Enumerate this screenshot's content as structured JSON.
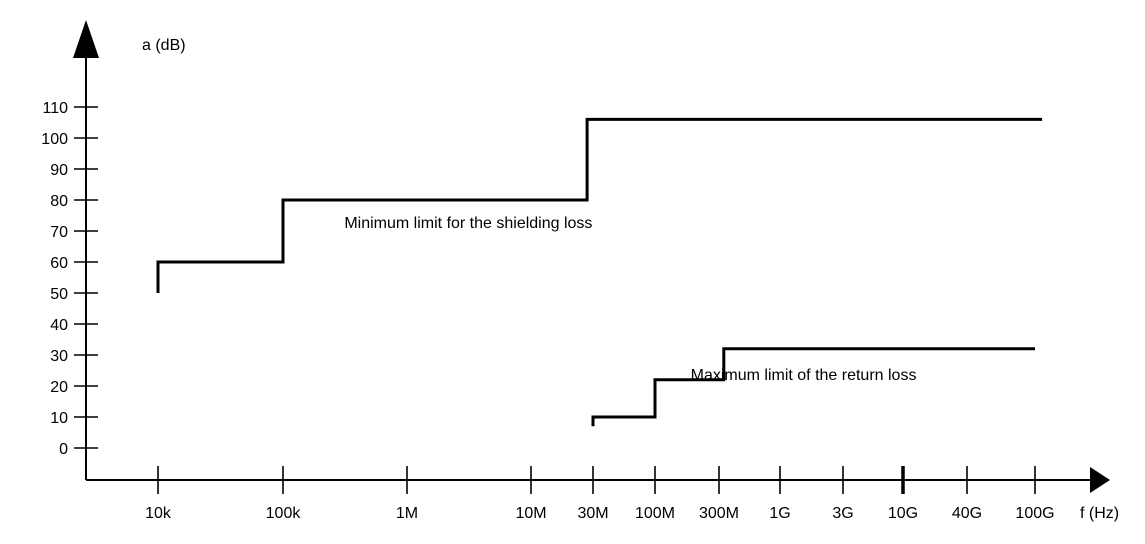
{
  "chart_data": {
    "type": "line",
    "x_scale": "log",
    "xlabel": "f (Hz)",
    "ylabel": "a (dB)",
    "ylim": [
      0,
      110
    ],
    "xlim": [
      10000,
      100000000000
    ],
    "grid": false,
    "legend": "none",
    "yticks": [
      {
        "value": 110,
        "label": "110"
      },
      {
        "value": 100,
        "label": "100"
      },
      {
        "value": 90,
        "label": "90"
      },
      {
        "value": 80,
        "label": "80"
      },
      {
        "value": 70,
        "label": "70"
      },
      {
        "value": 60,
        "label": "60"
      },
      {
        "value": 50,
        "label": "50"
      },
      {
        "value": 40,
        "label": "40"
      },
      {
        "value": 30,
        "label": "30"
      },
      {
        "value": 20,
        "label": "20"
      },
      {
        "value": 10,
        "label": "10"
      },
      {
        "value": 0,
        "label": "0"
      }
    ],
    "xticks": [
      {
        "value": 10000,
        "label": "10k"
      },
      {
        "value": 100000,
        "label": "100k"
      },
      {
        "value": 1000000,
        "label": "1M"
      },
      {
        "value": 10000000,
        "label": "10M"
      },
      {
        "value": 30000000,
        "label": "30M"
      },
      {
        "value": 100000000,
        "label": "100M"
      },
      {
        "value": 300000000,
        "label": "300M"
      },
      {
        "value": 1000000000,
        "label": "1G"
      },
      {
        "value": 3000000000,
        "label": "3G"
      },
      {
        "value": 10000000000,
        "label": "10G"
      },
      {
        "value": 40000000000,
        "label": "40G"
      },
      {
        "value": 100000000000,
        "label": "100G"
      }
    ],
    "series": [
      {
        "step": true,
        "points": [
          {
            "x": 10000,
            "y": 50
          },
          {
            "x": 10000,
            "y": 60
          },
          {
            "x": 100000,
            "y": 60
          },
          {
            "x": 100000,
            "y": 80
          },
          {
            "x": 27000000,
            "y": 80
          },
          {
            "x": 27000000,
            "y": 106
          },
          {
            "x": 110000000000,
            "y": 106
          }
        ]
      },
      {
        "step": true,
        "points": [
          {
            "x": 30000000,
            "y": 7
          },
          {
            "x": 30000000,
            "y": 10
          },
          {
            "x": 100000000,
            "y": 10
          },
          {
            "x": 100000000,
            "y": 22
          },
          {
            "x": 330000000,
            "y": 22
          },
          {
            "x": 330000000,
            "y": 32
          },
          {
            "x": 100000000000,
            "y": 32
          }
        ]
      }
    ],
    "annotations": [
      {
        "text": "Minimum limit for the shielding loss",
        "x": 250000,
        "y": 71
      },
      {
        "text": "Maximum limit of the return loss",
        "x": 150000000,
        "y": 22
      }
    ]
  }
}
